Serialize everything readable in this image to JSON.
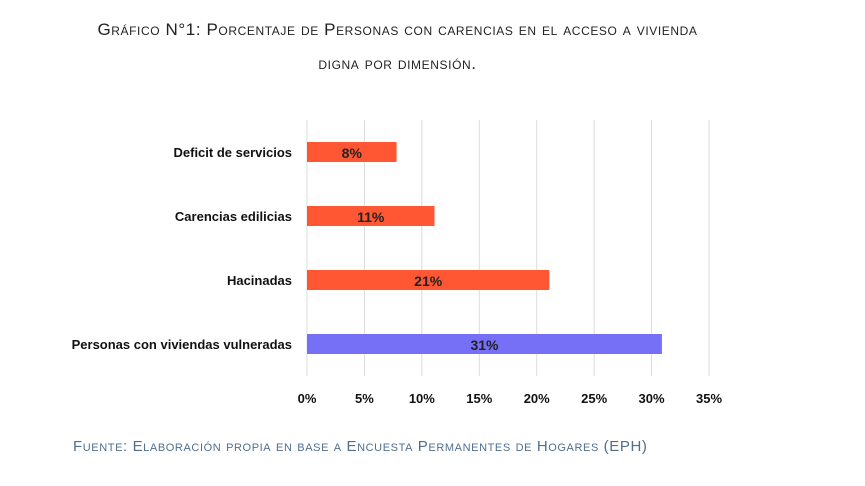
{
  "chart_data": {
    "type": "bar",
    "orientation": "horizontal",
    "title": "Gráfico N°1: Porcentaje de Personas con carencias en el acceso a vivienda",
    "title_line2": "digna por dimensión.",
    "source": "Fuente: Elaboración propia en base a Encuesta Permanentes de Hogares (EPH)",
    "categories": [
      "Deficit de servicios",
      "Carencias edilicias",
      "Hacinadas",
      "Personas con viviendas vulneradas"
    ],
    "values": [
      7.8,
      11.1,
      21.1,
      30.9
    ],
    "data_labels": [
      "8%",
      "11%",
      "21%",
      "31%"
    ],
    "colors": [
      "#ff5733",
      "#ff5733",
      "#ff5733",
      "#7570f5"
    ],
    "xlim": [
      0,
      35
    ],
    "xticks": [
      "0%",
      "5%",
      "10%",
      "15%",
      "20%",
      "25%",
      "30%",
      "35%"
    ],
    "grid": "vertical",
    "xlabel": "",
    "ylabel": ""
  }
}
